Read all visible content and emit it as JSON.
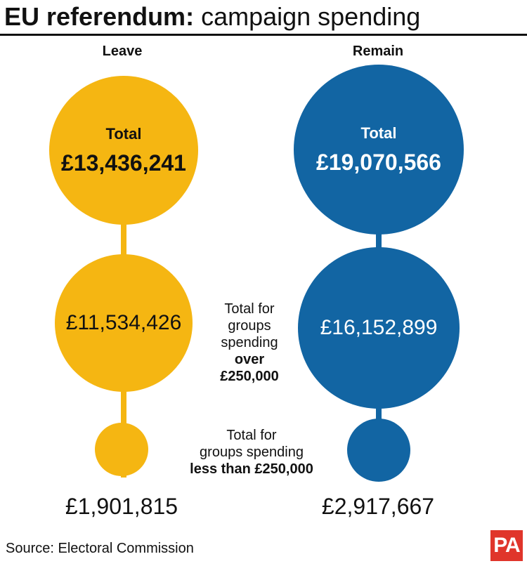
{
  "header": {
    "title_bold": "EU referendum:",
    "title_rest": " campaign spending"
  },
  "colors": {
    "leave": "#f5b612",
    "remain": "#1265a3"
  },
  "chart_data": {
    "type": "bubble",
    "title": "EU referendum: campaign spending",
    "series": [
      {
        "name": "Leave",
        "color": "#f5b612",
        "total_label": "Total",
        "total": "£13,436,241",
        "total_value": 13436241,
        "over_250k": "£11,534,426",
        "over_250k_value": 11534426,
        "under_250k": "£1,901,815",
        "under_250k_value": 1901815
      },
      {
        "name": "Remain",
        "color": "#1265a3",
        "total_label": "Total",
        "total": "£19,070,566",
        "total_value": 19070566,
        "over_250k": "£16,152,899",
        "over_250k_value": 16152899,
        "under_250k": "£2,917,667",
        "under_250k_value": 2917667
      }
    ],
    "annotations": {
      "over": {
        "line1": "Total for",
        "line2": "groups",
        "line3": "spending",
        "line4": "over",
        "line5": "£250,000"
      },
      "under": {
        "line1": "Total for",
        "line2": "groups spending",
        "line3": "less than £250,000"
      }
    }
  },
  "footer": {
    "source": "Source: Electoral Commission",
    "logo_text": "PA"
  }
}
